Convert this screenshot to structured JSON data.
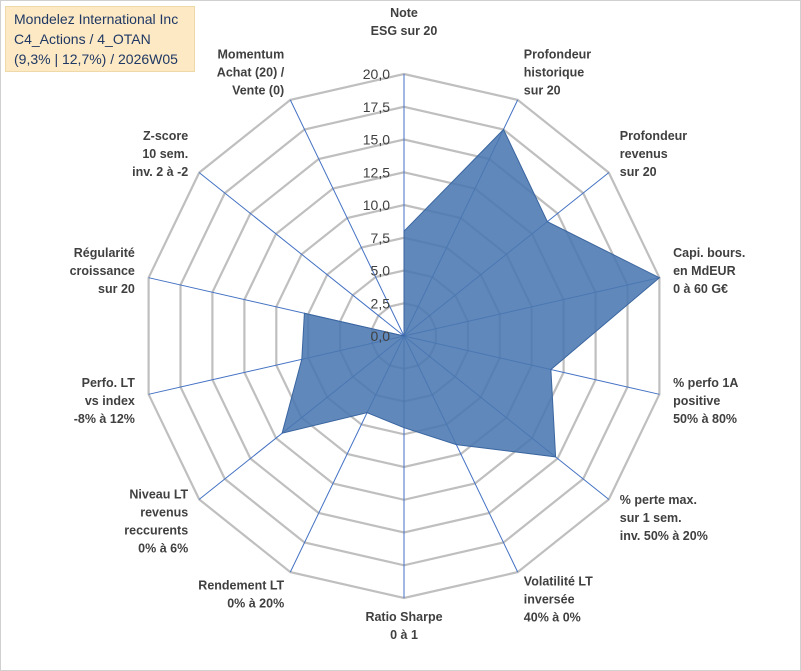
{
  "title_box": {
    "line1": "Mondelez International Inc",
    "line2": "C4_Actions / 4_OTAN",
    "line3": "(9,3% | 12,7%) / 2026W05"
  },
  "colors": {
    "fill": "#4a78b0",
    "stroke": "#3a65a0",
    "grid": "#bfbfbf",
    "spoke": "#4472c4",
    "title_bg": "#fde9c4",
    "title_text": "#1f3864"
  },
  "chart_data": {
    "type": "radar",
    "r_min": 0,
    "r_max": 20,
    "r_step": 2.5,
    "tick_labels": [
      "0,0",
      "2,5",
      "5,0",
      "7,5",
      "10,0",
      "12,5",
      "15,0",
      "17,5",
      "20,0"
    ],
    "axes": [
      {
        "label": [
          "Note",
          "ESG sur 20"
        ],
        "value": 8.0
      },
      {
        "label": [
          "Profondeur",
          "historique",
          "sur 20"
        ],
        "value": 17.5
      },
      {
        "label": [
          "Profondeur",
          "revenus",
          "sur 20"
        ],
        "value": 14.0
      },
      {
        "label": [
          "Capi. bours.",
          "en MdEUR",
          "0 à 60 G€"
        ],
        "value": 20.0
      },
      {
        "label": [
          "% perfo 1A",
          "positive",
          "50% à 80%"
        ],
        "value": 11.5
      },
      {
        "label": [
          "% perte max.",
          "sur 1 sem.",
          "inv. 50% à 20%"
        ],
        "value": 14.8
      },
      {
        "label": [
          "Volatilité LT",
          "inversée",
          "40% à 0%"
        ],
        "value": 9.2
      },
      {
        "label": [
          "Ratio Sharpe",
          "0 à 1"
        ],
        "value": 7.0
      },
      {
        "label": [
          "Rendement LT",
          "0% à 20%"
        ],
        "value": 6.5
      },
      {
        "label": [
          "Niveau LT",
          "revenus",
          "reccurents",
          "0% à 6%"
        ],
        "value": 11.9
      },
      {
        "label": [
          "Perfo. LT",
          "vs index",
          "-8% à 12%"
        ],
        "value": 8.0
      },
      {
        "label": [
          "Régularité",
          "croissance",
          "sur 20"
        ],
        "value": 7.8
      },
      {
        "label": [
          "Z-score",
          "10 sem.",
          "inv. 2 à -2"
        ],
        "value": 0.0
      },
      {
        "label": [
          "Momentum",
          "Achat (20) /",
          "Vente (0)"
        ],
        "value": 0.0
      }
    ]
  }
}
